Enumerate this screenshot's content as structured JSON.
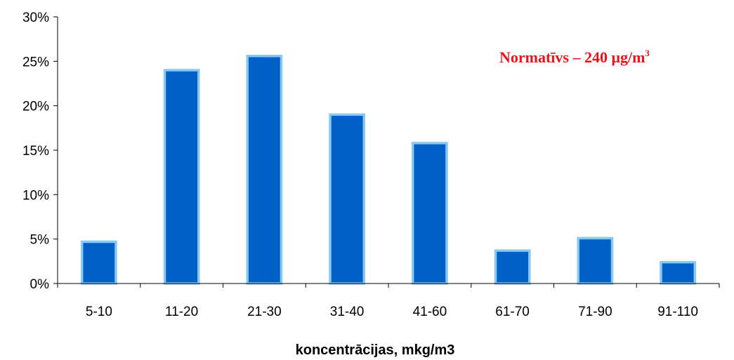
{
  "chart_data": {
    "type": "bar",
    "categories": [
      "5-10",
      "11-20",
      "21-30",
      "31-40",
      "41-60",
      "61-70",
      "71-90",
      "91-110"
    ],
    "values": [
      4.7,
      24.0,
      25.6,
      19.0,
      15.8,
      3.7,
      5.1,
      2.4
    ],
    "xlabel": "koncentrācijas, mkg/m3",
    "ylabel": "",
    "ylim": [
      0,
      30
    ],
    "yticks": [
      0,
      5,
      10,
      15,
      20,
      25,
      30
    ],
    "ytick_labels": [
      "0%",
      "5%",
      "10%",
      "15%",
      "20%",
      "25%",
      "30%"
    ],
    "grid": false,
    "legend": "none",
    "bar_color": "#0060C8",
    "bar_edge_color": "#8AC8F4",
    "annotation": {
      "text": "Normatīvs – 240 μg/m",
      "superscript": "3",
      "color": "#E8141C",
      "placement": "top-right"
    }
  }
}
